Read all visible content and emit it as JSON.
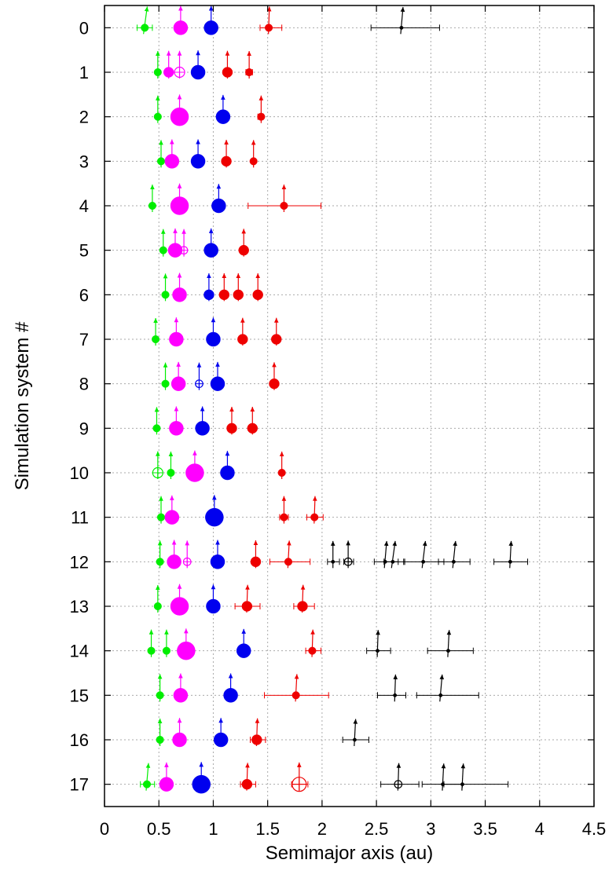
{
  "chart_data": {
    "type": "scatter",
    "title": "",
    "xlabel": "Semimajor axis (au)",
    "ylabel": "Simulation system #",
    "xlim": [
      0,
      4.5
    ],
    "ylim": [
      17.5,
      -0.5
    ],
    "xticks": [
      "0",
      "0.5",
      "1",
      "1.5",
      "2",
      "2.5",
      "3",
      "3.5",
      "4",
      "4.5"
    ],
    "yticks": [
      "0",
      "1",
      "2",
      "3",
      "4",
      "5",
      "6",
      "7",
      "8",
      "9",
      "10",
      "11",
      "12",
      "13",
      "14",
      "15",
      "16",
      "17"
    ],
    "grid": true,
    "colors": {
      "green": "#00ee00",
      "magenta": "#ff00ff",
      "blue": "#0000ee",
      "red": "#ee0000",
      "black": "#000000"
    },
    "planets": [
      {
        "system": 0,
        "a": 0.37,
        "color": "green",
        "size": "small",
        "err": [
          0.3,
          0.44
        ],
        "tilt": 0.08
      },
      {
        "system": 0,
        "a": 0.7,
        "color": "magenta",
        "size": "large",
        "tilt": 0
      },
      {
        "system": 0,
        "a": 0.98,
        "color": "blue",
        "size": "large",
        "tilt": 0
      },
      {
        "system": 0,
        "a": 1.51,
        "color": "red",
        "size": "small",
        "err": [
          1.43,
          1.63
        ],
        "tilt": 0.02
      },
      {
        "system": 0,
        "a": 2.73,
        "color": "black",
        "size": "tiny",
        "err": [
          2.45,
          3.08
        ],
        "tilt": 0.05
      },
      {
        "system": 1,
        "a": 0.49,
        "color": "green",
        "size": "small",
        "tilt": 0
      },
      {
        "system": 1,
        "a": 0.59,
        "color": "magenta",
        "size": "medium",
        "tilt": 0
      },
      {
        "system": 1,
        "a": 0.69,
        "color": "magenta",
        "size": "medium",
        "open": true,
        "tilt": 0
      },
      {
        "system": 1,
        "a": 0.86,
        "color": "blue",
        "size": "large",
        "tilt": 0
      },
      {
        "system": 1,
        "a": 1.13,
        "color": "red",
        "size": "medium",
        "tilt": 0
      },
      {
        "system": 1,
        "a": 1.33,
        "color": "red",
        "size": "small",
        "err": [
          1.3,
          1.36
        ],
        "tilt": 0
      },
      {
        "system": 2,
        "a": 0.49,
        "color": "green",
        "size": "small",
        "tilt": 0
      },
      {
        "system": 2,
        "a": 0.69,
        "color": "magenta",
        "size": "xlarge",
        "tilt": 0
      },
      {
        "system": 2,
        "a": 1.09,
        "color": "blue",
        "size": "large",
        "tilt": 0
      },
      {
        "system": 2,
        "a": 1.44,
        "color": "red",
        "size": "small",
        "err": [
          1.41,
          1.46
        ],
        "tilt": 0
      },
      {
        "system": 3,
        "a": 0.52,
        "color": "green",
        "size": "small",
        "tilt": 0
      },
      {
        "system": 3,
        "a": 0.62,
        "color": "magenta",
        "size": "large",
        "tilt": 0
      },
      {
        "system": 3,
        "a": 0.86,
        "color": "blue",
        "size": "large",
        "tilt": 0
      },
      {
        "system": 3,
        "a": 1.12,
        "color": "red",
        "size": "medium",
        "tilt": 0
      },
      {
        "system": 3,
        "a": 1.37,
        "color": "red",
        "size": "small",
        "tilt": 0
      },
      {
        "system": 4,
        "a": 0.44,
        "color": "green",
        "size": "small",
        "tilt": 0
      },
      {
        "system": 4,
        "a": 0.69,
        "color": "magenta",
        "size": "xlarge",
        "tilt": 0
      },
      {
        "system": 4,
        "a": 1.05,
        "color": "blue",
        "size": "large",
        "tilt": 0
      },
      {
        "system": 4,
        "a": 1.65,
        "color": "red",
        "size": "small",
        "err": [
          1.32,
          1.99
        ],
        "tilt": 0
      },
      {
        "system": 5,
        "a": 0.54,
        "color": "green",
        "size": "small",
        "tilt": 0
      },
      {
        "system": 5,
        "a": 0.65,
        "color": "magenta",
        "size": "large",
        "tilt": 0
      },
      {
        "system": 5,
        "a": 0.73,
        "color": "magenta",
        "size": "small",
        "open": true,
        "tilt": 0
      },
      {
        "system": 5,
        "a": 0.98,
        "color": "blue",
        "size": "large",
        "tilt": 0
      },
      {
        "system": 5,
        "a": 1.28,
        "color": "red",
        "size": "medium",
        "tilt": 0
      },
      {
        "system": 6,
        "a": 0.56,
        "color": "green",
        "size": "small",
        "tilt": 0
      },
      {
        "system": 6,
        "a": 0.69,
        "color": "magenta",
        "size": "large",
        "tilt": 0
      },
      {
        "system": 6,
        "a": 0.96,
        "color": "blue",
        "size": "medium",
        "tilt": 0
      },
      {
        "system": 6,
        "a": 1.1,
        "color": "red",
        "size": "medium",
        "tilt": 0
      },
      {
        "system": 6,
        "a": 1.23,
        "color": "red",
        "size": "medium",
        "tilt": 0
      },
      {
        "system": 6,
        "a": 1.41,
        "color": "red",
        "size": "medium",
        "tilt": 0
      },
      {
        "system": 7,
        "a": 0.47,
        "color": "green",
        "size": "small",
        "tilt": 0
      },
      {
        "system": 7,
        "a": 0.66,
        "color": "magenta",
        "size": "large",
        "tilt": 0
      },
      {
        "system": 7,
        "a": 1.0,
        "color": "blue",
        "size": "large",
        "tilt": 0
      },
      {
        "system": 7,
        "a": 1.27,
        "color": "red",
        "size": "medium",
        "tilt": 0
      },
      {
        "system": 7,
        "a": 1.58,
        "color": "red",
        "size": "medium",
        "tilt": 0
      },
      {
        "system": 8,
        "a": 0.56,
        "color": "green",
        "size": "small",
        "tilt": 0
      },
      {
        "system": 8,
        "a": 0.68,
        "color": "magenta",
        "size": "large",
        "tilt": 0
      },
      {
        "system": 8,
        "a": 0.87,
        "color": "blue",
        "size": "small",
        "open": true,
        "tilt": 0
      },
      {
        "system": 8,
        "a": 1.04,
        "color": "blue",
        "size": "large",
        "tilt": 0
      },
      {
        "system": 8,
        "a": 1.56,
        "color": "red",
        "size": "medium",
        "tilt": 0
      },
      {
        "system": 9,
        "a": 0.48,
        "color": "green",
        "size": "small",
        "tilt": 0
      },
      {
        "system": 9,
        "a": 0.66,
        "color": "magenta",
        "size": "large",
        "tilt": 0
      },
      {
        "system": 9,
        "a": 0.9,
        "color": "blue",
        "size": "large",
        "tilt": 0
      },
      {
        "system": 9,
        "a": 1.17,
        "color": "red",
        "size": "medium",
        "tilt": 0
      },
      {
        "system": 9,
        "a": 1.36,
        "color": "red",
        "size": "medium",
        "tilt": 0
      },
      {
        "system": 10,
        "a": 0.49,
        "color": "green",
        "size": "medium",
        "open": true,
        "tilt": 0
      },
      {
        "system": 10,
        "a": 0.61,
        "color": "green",
        "size": "small",
        "tilt": 0
      },
      {
        "system": 10,
        "a": 0.83,
        "color": "magenta",
        "size": "xlarge",
        "tilt": 0
      },
      {
        "system": 10,
        "a": 1.13,
        "color": "blue",
        "size": "large",
        "tilt": 0
      },
      {
        "system": 10,
        "a": 1.63,
        "color": "red",
        "size": "small",
        "tilt": 0
      },
      {
        "system": 11,
        "a": 0.52,
        "color": "green",
        "size": "small",
        "tilt": 0
      },
      {
        "system": 11,
        "a": 0.62,
        "color": "magenta",
        "size": "large",
        "tilt": 0
      },
      {
        "system": 11,
        "a": 1.01,
        "color": "blue",
        "size": "xlarge",
        "tilt": 0
      },
      {
        "system": 11,
        "a": 1.65,
        "color": "red",
        "size": "small",
        "err": [
          1.61,
          1.69
        ],
        "tilt": 0
      },
      {
        "system": 11,
        "a": 1.93,
        "color": "red",
        "size": "small",
        "err": [
          1.86,
          2.01
        ],
        "tilt": 0.02
      },
      {
        "system": 12,
        "a": 0.51,
        "color": "green",
        "size": "small",
        "tilt": 0
      },
      {
        "system": 12,
        "a": 0.64,
        "color": "magenta",
        "size": "large",
        "tilt": 0
      },
      {
        "system": 12,
        "a": 0.76,
        "color": "magenta",
        "size": "small",
        "open": true,
        "tilt": 0
      },
      {
        "system": 12,
        "a": 1.04,
        "color": "blue",
        "size": "large",
        "tilt": 0
      },
      {
        "system": 12,
        "a": 1.39,
        "color": "red",
        "size": "medium",
        "tilt": 0
      },
      {
        "system": 12,
        "a": 1.69,
        "color": "red",
        "size": "small",
        "err": [
          1.52,
          1.89
        ],
        "tilt": 0.03
      },
      {
        "system": 12,
        "a": 2.1,
        "color": "black",
        "size": "tiny",
        "err": [
          2.05,
          2.16
        ],
        "tilt": 0
      },
      {
        "system": 12,
        "a": 2.24,
        "color": "black",
        "size": "small",
        "open": true,
        "err": [
          2.2,
          2.29
        ],
        "tilt": 0
      },
      {
        "system": 12,
        "a": 2.58,
        "color": "black",
        "size": "tiny",
        "err": [
          2.48,
          2.7
        ],
        "tilt": 0.05
      },
      {
        "system": 12,
        "a": 2.65,
        "color": "black",
        "size": "tiny",
        "err": [
          2.57,
          2.76
        ],
        "tilt": 0.08
      },
      {
        "system": 12,
        "a": 2.93,
        "color": "black",
        "size": "tiny",
        "err": [
          2.75,
          3.12
        ],
        "tilt": 0.07
      },
      {
        "system": 12,
        "a": 3.21,
        "color": "black",
        "size": "tiny",
        "err": [
          3.07,
          3.36
        ],
        "tilt": 0.06
      },
      {
        "system": 12,
        "a": 3.73,
        "color": "black",
        "size": "tiny",
        "err": [
          3.58,
          3.89
        ],
        "tilt": 0.03
      },
      {
        "system": 13,
        "a": 0.49,
        "color": "green",
        "size": "small",
        "tilt": 0
      },
      {
        "system": 13,
        "a": 0.69,
        "color": "magenta",
        "size": "xlarge",
        "tilt": 0
      },
      {
        "system": 13,
        "a": 1.0,
        "color": "blue",
        "size": "large",
        "tilt": 0
      },
      {
        "system": 13,
        "a": 1.31,
        "color": "red",
        "size": "medium",
        "err": [
          1.2,
          1.43
        ],
        "tilt": 0.02
      },
      {
        "system": 13,
        "a": 1.82,
        "color": "red",
        "size": "medium",
        "err": [
          1.74,
          1.93
        ],
        "tilt": 0.02
      },
      {
        "system": 14,
        "a": 0.43,
        "color": "green",
        "size": "small",
        "tilt": 0
      },
      {
        "system": 14,
        "a": 0.57,
        "color": "green",
        "size": "small",
        "tilt": 0
      },
      {
        "system": 14,
        "a": 0.75,
        "color": "magenta",
        "size": "xlarge",
        "tilt": 0
      },
      {
        "system": 14,
        "a": 1.28,
        "color": "blue",
        "size": "large",
        "tilt": 0
      },
      {
        "system": 14,
        "a": 1.91,
        "color": "red",
        "size": "small",
        "err": [
          1.85,
          1.99
        ],
        "tilt": 0.02
      },
      {
        "system": 14,
        "a": 2.51,
        "color": "black",
        "size": "tiny",
        "err": [
          2.41,
          2.63
        ],
        "tilt": 0.02
      },
      {
        "system": 14,
        "a": 3.16,
        "color": "black",
        "size": "tiny",
        "err": [
          2.97,
          3.39
        ],
        "tilt": 0.03
      },
      {
        "system": 15,
        "a": 0.51,
        "color": "green",
        "size": "small",
        "tilt": 0
      },
      {
        "system": 15,
        "a": 0.7,
        "color": "magenta",
        "size": "large",
        "tilt": 0
      },
      {
        "system": 15,
        "a": 1.16,
        "color": "blue",
        "size": "large",
        "tilt": 0
      },
      {
        "system": 15,
        "a": 1.76,
        "color": "red",
        "size": "small",
        "err": [
          1.47,
          2.06
        ],
        "tilt": 0.03
      },
      {
        "system": 15,
        "a": 2.67,
        "color": "black",
        "size": "tiny",
        "err": [
          2.51,
          2.77
        ],
        "tilt": 0.02
      },
      {
        "system": 15,
        "a": 3.09,
        "color": "black",
        "size": "tiny",
        "err": [
          2.87,
          3.44
        ],
        "tilt": 0.05
      },
      {
        "system": 16,
        "a": 0.51,
        "color": "green",
        "size": "small",
        "tilt": 0
      },
      {
        "system": 16,
        "a": 0.69,
        "color": "magenta",
        "size": "large",
        "tilt": 0
      },
      {
        "system": 16,
        "a": 1.07,
        "color": "blue",
        "size": "large",
        "tilt": 0
      },
      {
        "system": 16,
        "a": 1.4,
        "color": "red",
        "size": "medium",
        "err": [
          1.34,
          1.48
        ],
        "tilt": 0.02
      },
      {
        "system": 16,
        "a": 2.3,
        "color": "black",
        "size": "tiny",
        "err": [
          2.19,
          2.43
        ],
        "tilt": 0.03
      },
      {
        "system": 17,
        "a": 0.39,
        "color": "green",
        "size": "small",
        "err": [
          0.33,
          0.46
        ],
        "tilt": 0.05
      },
      {
        "system": 17,
        "a": 0.57,
        "color": "magenta",
        "size": "large",
        "tilt": 0
      },
      {
        "system": 17,
        "a": 0.89,
        "color": "blue",
        "size": "xlarge",
        "tilt": 0
      },
      {
        "system": 17,
        "a": 1.31,
        "color": "red",
        "size": "medium",
        "err": [
          1.25,
          1.39
        ],
        "tilt": 0.02
      },
      {
        "system": 17,
        "a": 1.79,
        "color": "red",
        "size": "large",
        "open": true,
        "err": [
          1.72,
          1.87
        ],
        "tilt": 0
      },
      {
        "system": 17,
        "a": 2.7,
        "color": "black",
        "size": "small",
        "open": true,
        "err": [
          2.54,
          2.89
        ],
        "tilt": 0.02
      },
      {
        "system": 17,
        "a": 3.11,
        "color": "black",
        "size": "tiny",
        "err": [
          2.92,
          3.29
        ],
        "tilt": 0.03
      },
      {
        "system": 17,
        "a": 3.29,
        "color": "black",
        "size": "tiny",
        "err": [
          3.12,
          3.71
        ],
        "tilt": 0.03
      }
    ]
  }
}
